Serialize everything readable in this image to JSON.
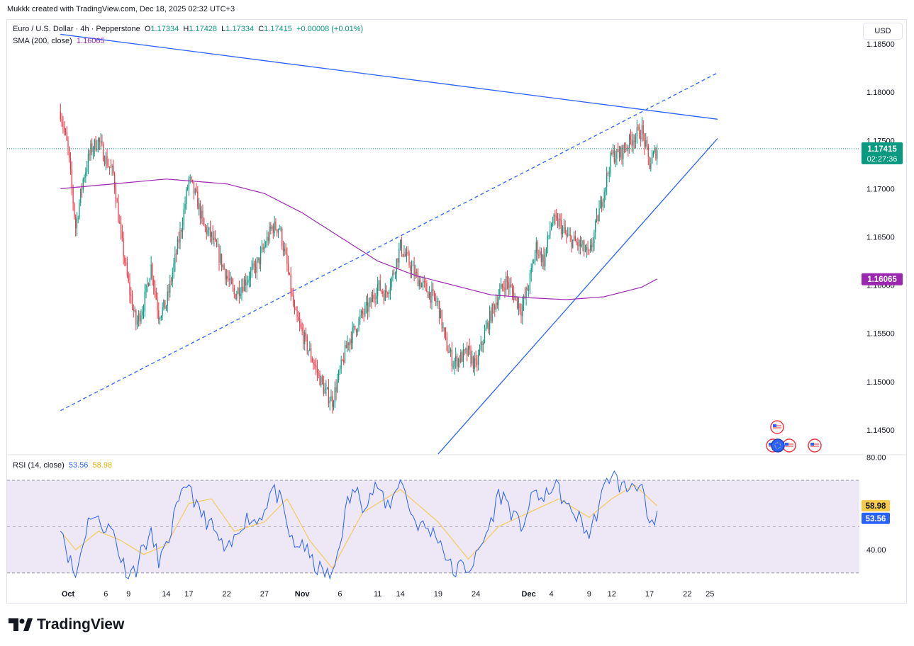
{
  "caption": "Mukkk created with TradingView.com, Dec 18, 2025 02:32 UTC+3",
  "header": {
    "symbol": "Euro / U.S. Dollar · 4h · Pepperstone",
    "o_label": "O",
    "o_value": "1.17334",
    "h_label": "H",
    "h_value": "1.17428",
    "l_label": "L",
    "l_value": "1.17334",
    "c_label": "C",
    "c_value": "1.17415",
    "change": "+0.00008 (+0.01%)"
  },
  "sma_legend": {
    "label": "SMA (200, close)",
    "value": "1.16065"
  },
  "rsi_legend": {
    "label": "RSI (14, close)",
    "value1": "53.56",
    "value2": "58.98"
  },
  "currency_button": "USD",
  "brand": "TradingView",
  "colors": {
    "up": "#089981",
    "down": "#f23645",
    "sma": "#9c27b0",
    "trend": "#2962ff",
    "rsi": "#2962ff",
    "rsi_ma": "#f7c948",
    "rsi_band": "#ede7f6"
  },
  "chart_data": [
    {
      "type": "candlestick",
      "title": "Euro / U.S. Dollar · 4h · Pepperstone",
      "y_ticks": [
        "1.18500",
        "1.18000",
        "1.17500",
        "1.17000",
        "1.16500",
        "1.16000",
        "1.15500",
        "1.15000",
        "1.14500"
      ],
      "x_ticks": [
        "Oct",
        "6",
        "9",
        "14",
        "17",
        "22",
        "27",
        "Nov",
        "6",
        "11",
        "14",
        "19",
        "24",
        "Dec",
        "4",
        "9",
        "12",
        "17",
        "22",
        "25"
      ],
      "last_price": "1.17415",
      "countdown": "02:27:36",
      "sma_label": "1.16065",
      "ylim": [
        1.1425,
        1.1875
      ],
      "price_path": [
        [
          "Sep 30",
          1.178
        ],
        [
          "Oct 1",
          1.174
        ],
        [
          "Oct 2",
          1.166
        ],
        [
          "Oct 3",
          1.171
        ],
        [
          "Oct 4",
          1.174
        ],
        [
          "Oct 5",
          1.175
        ],
        [
          "Oct 6",
          1.173
        ],
        [
          "Oct 7",
          1.1715
        ],
        [
          "Oct 8",
          1.165
        ],
        [
          "Oct 9",
          1.16
        ],
        [
          "Oct 10",
          1.156
        ],
        [
          "Oct 11",
          1.158
        ],
        [
          "Oct 12",
          1.162
        ],
        [
          "Oct 13",
          1.157
        ],
        [
          "Oct 14",
          1.158
        ],
        [
          "Oct 15",
          1.162
        ],
        [
          "Oct 16",
          1.166
        ],
        [
          "Oct 17",
          1.171
        ],
        [
          "Oct 18",
          1.169
        ],
        [
          "Oct 19",
          1.166
        ],
        [
          "Oct 20",
          1.165
        ],
        [
          "Oct 21",
          1.163
        ],
        [
          "Oct 22",
          1.161
        ],
        [
          "Oct 23",
          1.159
        ],
        [
          "Oct 24",
          1.16
        ],
        [
          "Oct 25",
          1.161
        ],
        [
          "Oct 26",
          1.162
        ],
        [
          "Oct 27",
          1.164
        ],
        [
          "Oct 28",
          1.166
        ],
        [
          "Oct 29",
          1.166
        ],
        [
          "Oct 30",
          1.162
        ],
        [
          "Oct 31",
          1.157
        ],
        [
          "Nov 1",
          1.155
        ],
        [
          "Nov 2",
          1.153
        ],
        [
          "Nov 3",
          1.151
        ],
        [
          "Nov 4",
          1.149
        ],
        [
          "Nov 5",
          1.148
        ],
        [
          "Nov 6",
          1.151
        ],
        [
          "Nov 7",
          1.154
        ],
        [
          "Nov 8",
          1.1555
        ],
        [
          "Nov 9",
          1.157
        ],
        [
          "Nov 10",
          1.158
        ],
        [
          "Nov 11",
          1.16
        ],
        [
          "Nov 12",
          1.159
        ],
        [
          "Nov 13",
          1.161
        ],
        [
          "Nov 14",
          1.164
        ],
        [
          "Nov 15",
          1.1625
        ],
        [
          "Nov 16",
          1.161
        ],
        [
          "Nov 17",
          1.16
        ],
        [
          "Nov 18",
          1.159
        ],
        [
          "Nov 19",
          1.158
        ],
        [
          "Nov 20",
          1.154
        ],
        [
          "Nov 21",
          1.152
        ],
        [
          "Nov 22",
          1.1525
        ],
        [
          "Nov 23",
          1.153
        ],
        [
          "Nov 24",
          1.1515
        ],
        [
          "Nov 25",
          1.1545
        ],
        [
          "Nov 26",
          1.157
        ],
        [
          "Nov 27",
          1.159
        ],
        [
          "Nov 28",
          1.1605
        ],
        [
          "Nov 29",
          1.159
        ],
        [
          "Nov 30",
          1.1575
        ],
        [
          "Dec 1",
          1.16
        ],
        [
          "Dec 2",
          1.164
        ],
        [
          "Dec 3",
          1.1625
        ],
        [
          "Dec 4",
          1.1665
        ],
        [
          "Dec 5",
          1.1665
        ],
        [
          "Dec 6",
          1.165
        ],
        [
          "Dec 7",
          1.1645
        ],
        [
          "Dec 8",
          1.164
        ],
        [
          "Dec 9",
          1.163
        ],
        [
          "Dec 10",
          1.1665
        ],
        [
          "Dec 11",
          1.17
        ],
        [
          "Dec 12",
          1.1735
        ],
        [
          "Dec 13",
          1.1735
        ],
        [
          "Dec 14",
          1.1745
        ],
        [
          "Dec 15",
          1.1755
        ],
        [
          "Dec 16",
          1.176
        ],
        [
          "Dec 17",
          1.1725
        ],
        [
          "Dec 18",
          1.17415
        ]
      ],
      "sma_path": [
        [
          "Sep 30",
          1.17
        ],
        [
          "Oct 14",
          1.171
        ],
        [
          "Oct 22",
          1.1705
        ],
        [
          "Oct 27",
          1.1695
        ],
        [
          "Nov 1",
          1.1675
        ],
        [
          "Nov 6",
          1.165
        ],
        [
          "Nov 11",
          1.1625
        ],
        [
          "Nov 16",
          1.161
        ],
        [
          "Nov 21",
          1.16
        ],
        [
          "Nov 26",
          1.159
        ],
        [
          "Dec 1",
          1.1587
        ],
        [
          "Dec 6",
          1.1585
        ],
        [
          "Dec 11",
          1.1588
        ],
        [
          "Dec 16",
          1.1598
        ],
        [
          "Dec 18",
          1.16065
        ]
      ],
      "trendlines": [
        {
          "style": "solid",
          "from": [
            "Sep 30",
            1.186
          ],
          "to": [
            "Dec 26",
            1.1772
          ]
        },
        {
          "style": "dashed",
          "from": [
            "Sep 30",
            1.147
          ],
          "to": [
            "Dec 26",
            1.182
          ]
        },
        {
          "style": "solid",
          "from": [
            "Nov 19",
            1.1425
          ],
          "to": [
            "Dec 26",
            1.1752
          ]
        }
      ]
    },
    {
      "type": "line",
      "title": "RSI (14, close)",
      "y_ticks": [
        "80.00",
        "40.00"
      ],
      "levels": [
        70,
        30
      ],
      "midline": 50,
      "ylim": [
        26,
        81
      ],
      "rsi_value": "53.56",
      "rsi_ma_value": "58.98",
      "rsi_path": [
        [
          "Sep 30",
          52
        ],
        [
          "Oct 1",
          38
        ],
        [
          "Oct 2",
          28
        ],
        [
          "Oct 3",
          44
        ],
        [
          "Oct 4",
          56
        ],
        [
          "Oct 5",
          52
        ],
        [
          "Oct 6",
          50
        ],
        [
          "Oct 7",
          48
        ],
        [
          "Oct 8",
          36
        ],
        [
          "Oct 9",
          30
        ],
        [
          "Oct 10",
          32
        ],
        [
          "Oct 11",
          42
        ],
        [
          "Oct 12",
          46
        ],
        [
          "Oct 13",
          36
        ],
        [
          "Oct 14",
          40
        ],
        [
          "Oct 15",
          54
        ],
        [
          "Oct 16",
          62
        ],
        [
          "Oct 17",
          70
        ],
        [
          "Oct 18",
          58
        ],
        [
          "Oct 19",
          54
        ],
        [
          "Oct 20",
          50
        ],
        [
          "Oct 21",
          44
        ],
        [
          "Oct 22",
          38
        ],
        [
          "Oct 23",
          44
        ],
        [
          "Oct 24",
          52
        ],
        [
          "Oct 25",
          54
        ],
        [
          "Oct 26",
          52
        ],
        [
          "Oct 27",
          58
        ],
        [
          "Oct 28",
          66
        ],
        [
          "Oct 29",
          62
        ],
        [
          "Oct 30",
          50
        ],
        [
          "Oct 31",
          40
        ],
        [
          "Nov 1",
          44
        ],
        [
          "Nov 2",
          36
        ],
        [
          "Nov 3",
          32
        ],
        [
          "Nov 4",
          30
        ],
        [
          "Nov 5",
          28
        ],
        [
          "Nov 6",
          44
        ],
        [
          "Nov 7",
          60
        ],
        [
          "Nov 8",
          66
        ],
        [
          "Nov 9",
          60
        ],
        [
          "Nov 10",
          64
        ],
        [
          "Nov 11",
          68
        ],
        [
          "Nov 12",
          58
        ],
        [
          "Nov 13",
          62
        ],
        [
          "Nov 14",
          72
        ],
        [
          "Nov 15",
          60
        ],
        [
          "Nov 16",
          52
        ],
        [
          "Nov 17",
          50
        ],
        [
          "Nov 18",
          48
        ],
        [
          "Nov 19",
          46
        ],
        [
          "Nov 20",
          38
        ],
        [
          "Nov 21",
          30
        ],
        [
          "Nov 22",
          33
        ],
        [
          "Nov 23",
          32
        ],
        [
          "Nov 24",
          36
        ],
        [
          "Nov 25",
          44
        ],
        [
          "Nov 26",
          52
        ],
        [
          "Nov 27",
          64
        ],
        [
          "Nov 28",
          62
        ],
        [
          "Nov 29",
          54
        ],
        [
          "Nov 30",
          50
        ],
        [
          "Dec 1",
          58
        ],
        [
          "Dec 2",
          66
        ],
        [
          "Dec 3",
          60
        ],
        [
          "Dec 4",
          68
        ],
        [
          "Dec 5",
          66
        ],
        [
          "Dec 6",
          58
        ],
        [
          "Dec 7",
          56
        ],
        [
          "Dec 8",
          52
        ],
        [
          "Dec 9",
          46
        ],
        [
          "Dec 10",
          56
        ],
        [
          "Dec 11",
          66
        ],
        [
          "Dec 12",
          74
        ],
        [
          "Dec 13",
          68
        ],
        [
          "Dec 14",
          66
        ],
        [
          "Dec 15",
          70
        ],
        [
          "Dec 16",
          66
        ],
        [
          "Dec 17",
          48
        ],
        [
          "Dec 18",
          53.56
        ]
      ],
      "rsi_ma_path": [
        [
          "Sep 30",
          48
        ],
        [
          "Oct 2",
          40
        ],
        [
          "Oct 5",
          48
        ],
        [
          "Oct 8",
          44
        ],
        [
          "Oct 11",
          38
        ],
        [
          "Oct 14",
          42
        ],
        [
          "Oct 17",
          60
        ],
        [
          "Oct 20",
          62
        ],
        [
          "Oct 23",
          48
        ],
        [
          "Oct 27",
          52
        ],
        [
          "Oct 30",
          62
        ],
        [
          "Nov 2",
          44
        ],
        [
          "Nov 5",
          32
        ],
        [
          "Nov 9",
          56
        ],
        [
          "Nov 14",
          66
        ],
        [
          "Nov 19",
          52
        ],
        [
          "Nov 23",
          36
        ],
        [
          "Nov 27",
          50
        ],
        [
          "Dec 1",
          56
        ],
        [
          "Dec 5",
          62
        ],
        [
          "Dec 9",
          54
        ],
        [
          "Dec 12",
          62
        ],
        [
          "Dec 15",
          68
        ],
        [
          "Dec 18",
          58.98
        ]
      ]
    }
  ]
}
